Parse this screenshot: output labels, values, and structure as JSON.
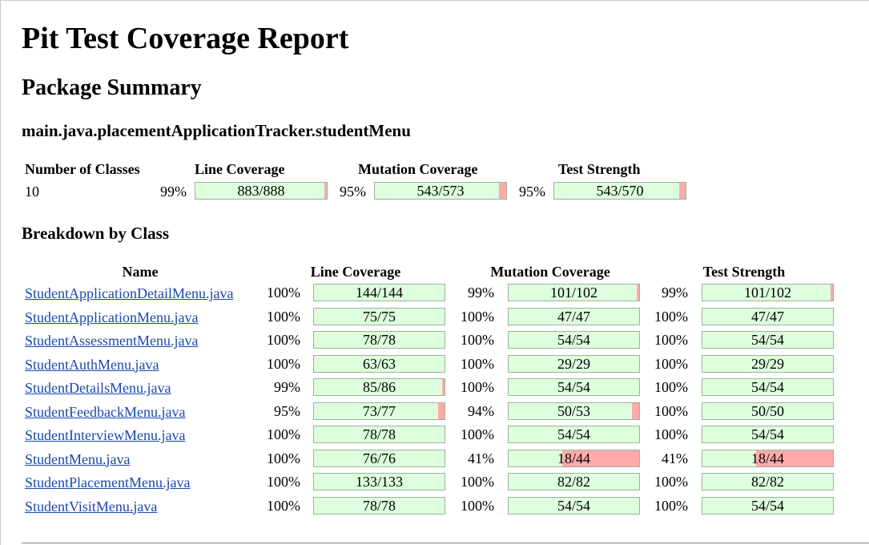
{
  "title": "Pit Test Coverage Report",
  "section": "Package Summary",
  "package_name": "main.java.placementApplicationTracker.studentMenu",
  "summary": {
    "headers": {
      "classes": "Number of Classes",
      "line": "Line Coverage",
      "mutation": "Mutation Coverage",
      "strength": "Test Strength"
    },
    "num_classes": "10",
    "line": {
      "percent": "99%",
      "legend": "883/888",
      "covered_fraction": 0.994
    },
    "mutation": {
      "percent": "95%",
      "legend": "543/573",
      "covered_fraction": 0.948
    },
    "strength": {
      "percent": "95%",
      "legend": "543/570",
      "covered_fraction": 0.953
    }
  },
  "breakdown": {
    "heading": "Breakdown by Class",
    "headers": {
      "name": "Name",
      "line": "Line Coverage",
      "mutation": "Mutation Coverage",
      "strength": "Test Strength"
    },
    "rows": [
      {
        "name": "StudentApplicationDetailMenu.java",
        "line": {
          "percent": "100%",
          "legend": "144/144",
          "covered_fraction": 1.0
        },
        "mutation": {
          "percent": "99%",
          "legend": "101/102",
          "covered_fraction": 0.99
        },
        "strength": {
          "percent": "99%",
          "legend": "101/102",
          "covered_fraction": 0.99
        }
      },
      {
        "name": "StudentApplicationMenu.java",
        "line": {
          "percent": "100%",
          "legend": "75/75",
          "covered_fraction": 1.0
        },
        "mutation": {
          "percent": "100%",
          "legend": "47/47",
          "covered_fraction": 1.0
        },
        "strength": {
          "percent": "100%",
          "legend": "47/47",
          "covered_fraction": 1.0
        }
      },
      {
        "name": "StudentAssessmentMenu.java",
        "line": {
          "percent": "100%",
          "legend": "78/78",
          "covered_fraction": 1.0
        },
        "mutation": {
          "percent": "100%",
          "legend": "54/54",
          "covered_fraction": 1.0
        },
        "strength": {
          "percent": "100%",
          "legend": "54/54",
          "covered_fraction": 1.0
        }
      },
      {
        "name": "StudentAuthMenu.java",
        "line": {
          "percent": "100%",
          "legend": "63/63",
          "covered_fraction": 1.0
        },
        "mutation": {
          "percent": "100%",
          "legend": "29/29",
          "covered_fraction": 1.0
        },
        "strength": {
          "percent": "100%",
          "legend": "29/29",
          "covered_fraction": 1.0
        }
      },
      {
        "name": "StudentDetailsMenu.java",
        "line": {
          "percent": "99%",
          "legend": "85/86",
          "covered_fraction": 0.988
        },
        "mutation": {
          "percent": "100%",
          "legend": "54/54",
          "covered_fraction": 1.0
        },
        "strength": {
          "percent": "100%",
          "legend": "54/54",
          "covered_fraction": 1.0
        }
      },
      {
        "name": "StudentFeedbackMenu.java",
        "line": {
          "percent": "95%",
          "legend": "73/77",
          "covered_fraction": 0.948
        },
        "mutation": {
          "percent": "94%",
          "legend": "50/53",
          "covered_fraction": 0.943
        },
        "strength": {
          "percent": "100%",
          "legend": "50/50",
          "covered_fraction": 1.0
        }
      },
      {
        "name": "StudentInterviewMenu.java",
        "line": {
          "percent": "100%",
          "legend": "78/78",
          "covered_fraction": 1.0
        },
        "mutation": {
          "percent": "100%",
          "legend": "54/54",
          "covered_fraction": 1.0
        },
        "strength": {
          "percent": "100%",
          "legend": "54/54",
          "covered_fraction": 1.0
        }
      },
      {
        "name": "StudentMenu.java",
        "line": {
          "percent": "100%",
          "legend": "76/76",
          "covered_fraction": 1.0
        },
        "mutation": {
          "percent": "41%",
          "legend": "18/44",
          "covered_fraction": 0.409
        },
        "strength": {
          "percent": "41%",
          "legend": "18/44",
          "covered_fraction": 0.409
        }
      },
      {
        "name": "StudentPlacementMenu.java",
        "line": {
          "percent": "100%",
          "legend": "133/133",
          "covered_fraction": 1.0
        },
        "mutation": {
          "percent": "100%",
          "legend": "82/82",
          "covered_fraction": 1.0
        },
        "strength": {
          "percent": "100%",
          "legend": "82/82",
          "covered_fraction": 1.0
        }
      },
      {
        "name": "StudentVisitMenu.java",
        "line": {
          "percent": "100%",
          "legend": "78/78",
          "covered_fraction": 1.0
        },
        "mutation": {
          "percent": "100%",
          "legend": "54/54",
          "covered_fraction": 1.0
        },
        "strength": {
          "percent": "100%",
          "legend": "54/54",
          "covered_fraction": 1.0
        }
      }
    ]
  },
  "colors": {
    "covered": "#ddffdd",
    "uncovered": "#ffaaaa",
    "link": "#1a47b0"
  }
}
